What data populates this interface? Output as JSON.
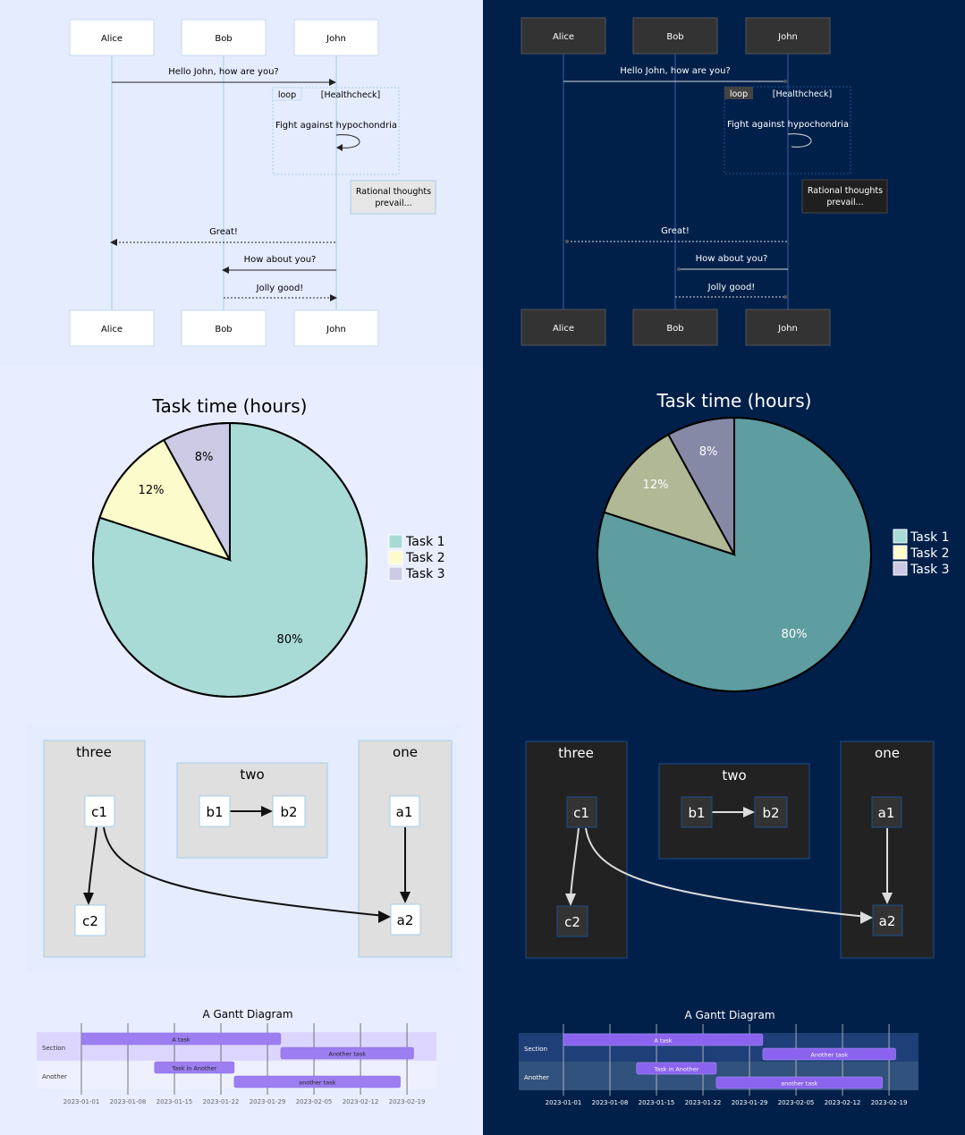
{
  "colors": {
    "light_bg": "#e8eeff",
    "dark_bg": "#00204a",
    "light_actor_fill": "#ffffff",
    "dark_actor_fill": "#333333",
    "pie_light": [
      "#a8dad6",
      "#fbfbcb",
      "#cbc9e3"
    ],
    "pie_dark": [
      "#5e9da0",
      "#b0b896",
      "#8589a6"
    ],
    "legend": [
      "#a8dad6",
      "#fbfbcb",
      "#cbc9e3"
    ],
    "gantt_bar": "#9c7ef0",
    "gantt_bar_dark": "#8a63ee"
  },
  "sequence": {
    "actors": [
      "Alice",
      "Bob",
      "John"
    ],
    "messages": [
      {
        "text": "Hello John, how are you?"
      },
      {
        "text": "Fight against hypochondria"
      },
      {
        "text": "Great!"
      },
      {
        "text": "How about you?"
      },
      {
        "text": "Jolly good!"
      }
    ],
    "loop_label": "loop",
    "loop_condition": "[Healthcheck]",
    "note_line1": "Rational thoughts",
    "note_line2": "prevail..."
  },
  "pie": {
    "title": "Task time (hours)",
    "labels": [
      "80%",
      "12%",
      "8%"
    ],
    "legend": [
      "Task 1",
      "Task 2",
      "Task 3"
    ]
  },
  "chart_data": {
    "type": "pie",
    "title": "Task time (hours)",
    "categories": [
      "Task 1",
      "Task 2",
      "Task 3"
    ],
    "values": [
      80,
      12,
      8
    ]
  },
  "flowchart": {
    "groups": [
      "three",
      "two",
      "one"
    ],
    "nodes": [
      "c1",
      "c2",
      "b1",
      "b2",
      "a1",
      "a2"
    ]
  },
  "gantt": {
    "title": "A Gantt Diagram",
    "sections": [
      "Section",
      "Another"
    ],
    "tasks": [
      {
        "label": "A task",
        "start": "2023-01-01",
        "end": "2023-01-31"
      },
      {
        "label": "Another task",
        "start": "2023-01-31",
        "end": "2023-02-20"
      },
      {
        "label": "Task in Another",
        "start": "2023-01-12",
        "end": "2023-01-24"
      },
      {
        "label": "another task",
        "start": "2023-01-24",
        "end": "2023-02-18"
      }
    ],
    "ticks": [
      "2023-01-01",
      "2023-01-08",
      "2023-01-15",
      "2023-01-22",
      "2023-01-29",
      "2023-02-05",
      "2023-02-12",
      "2023-02-19"
    ]
  }
}
